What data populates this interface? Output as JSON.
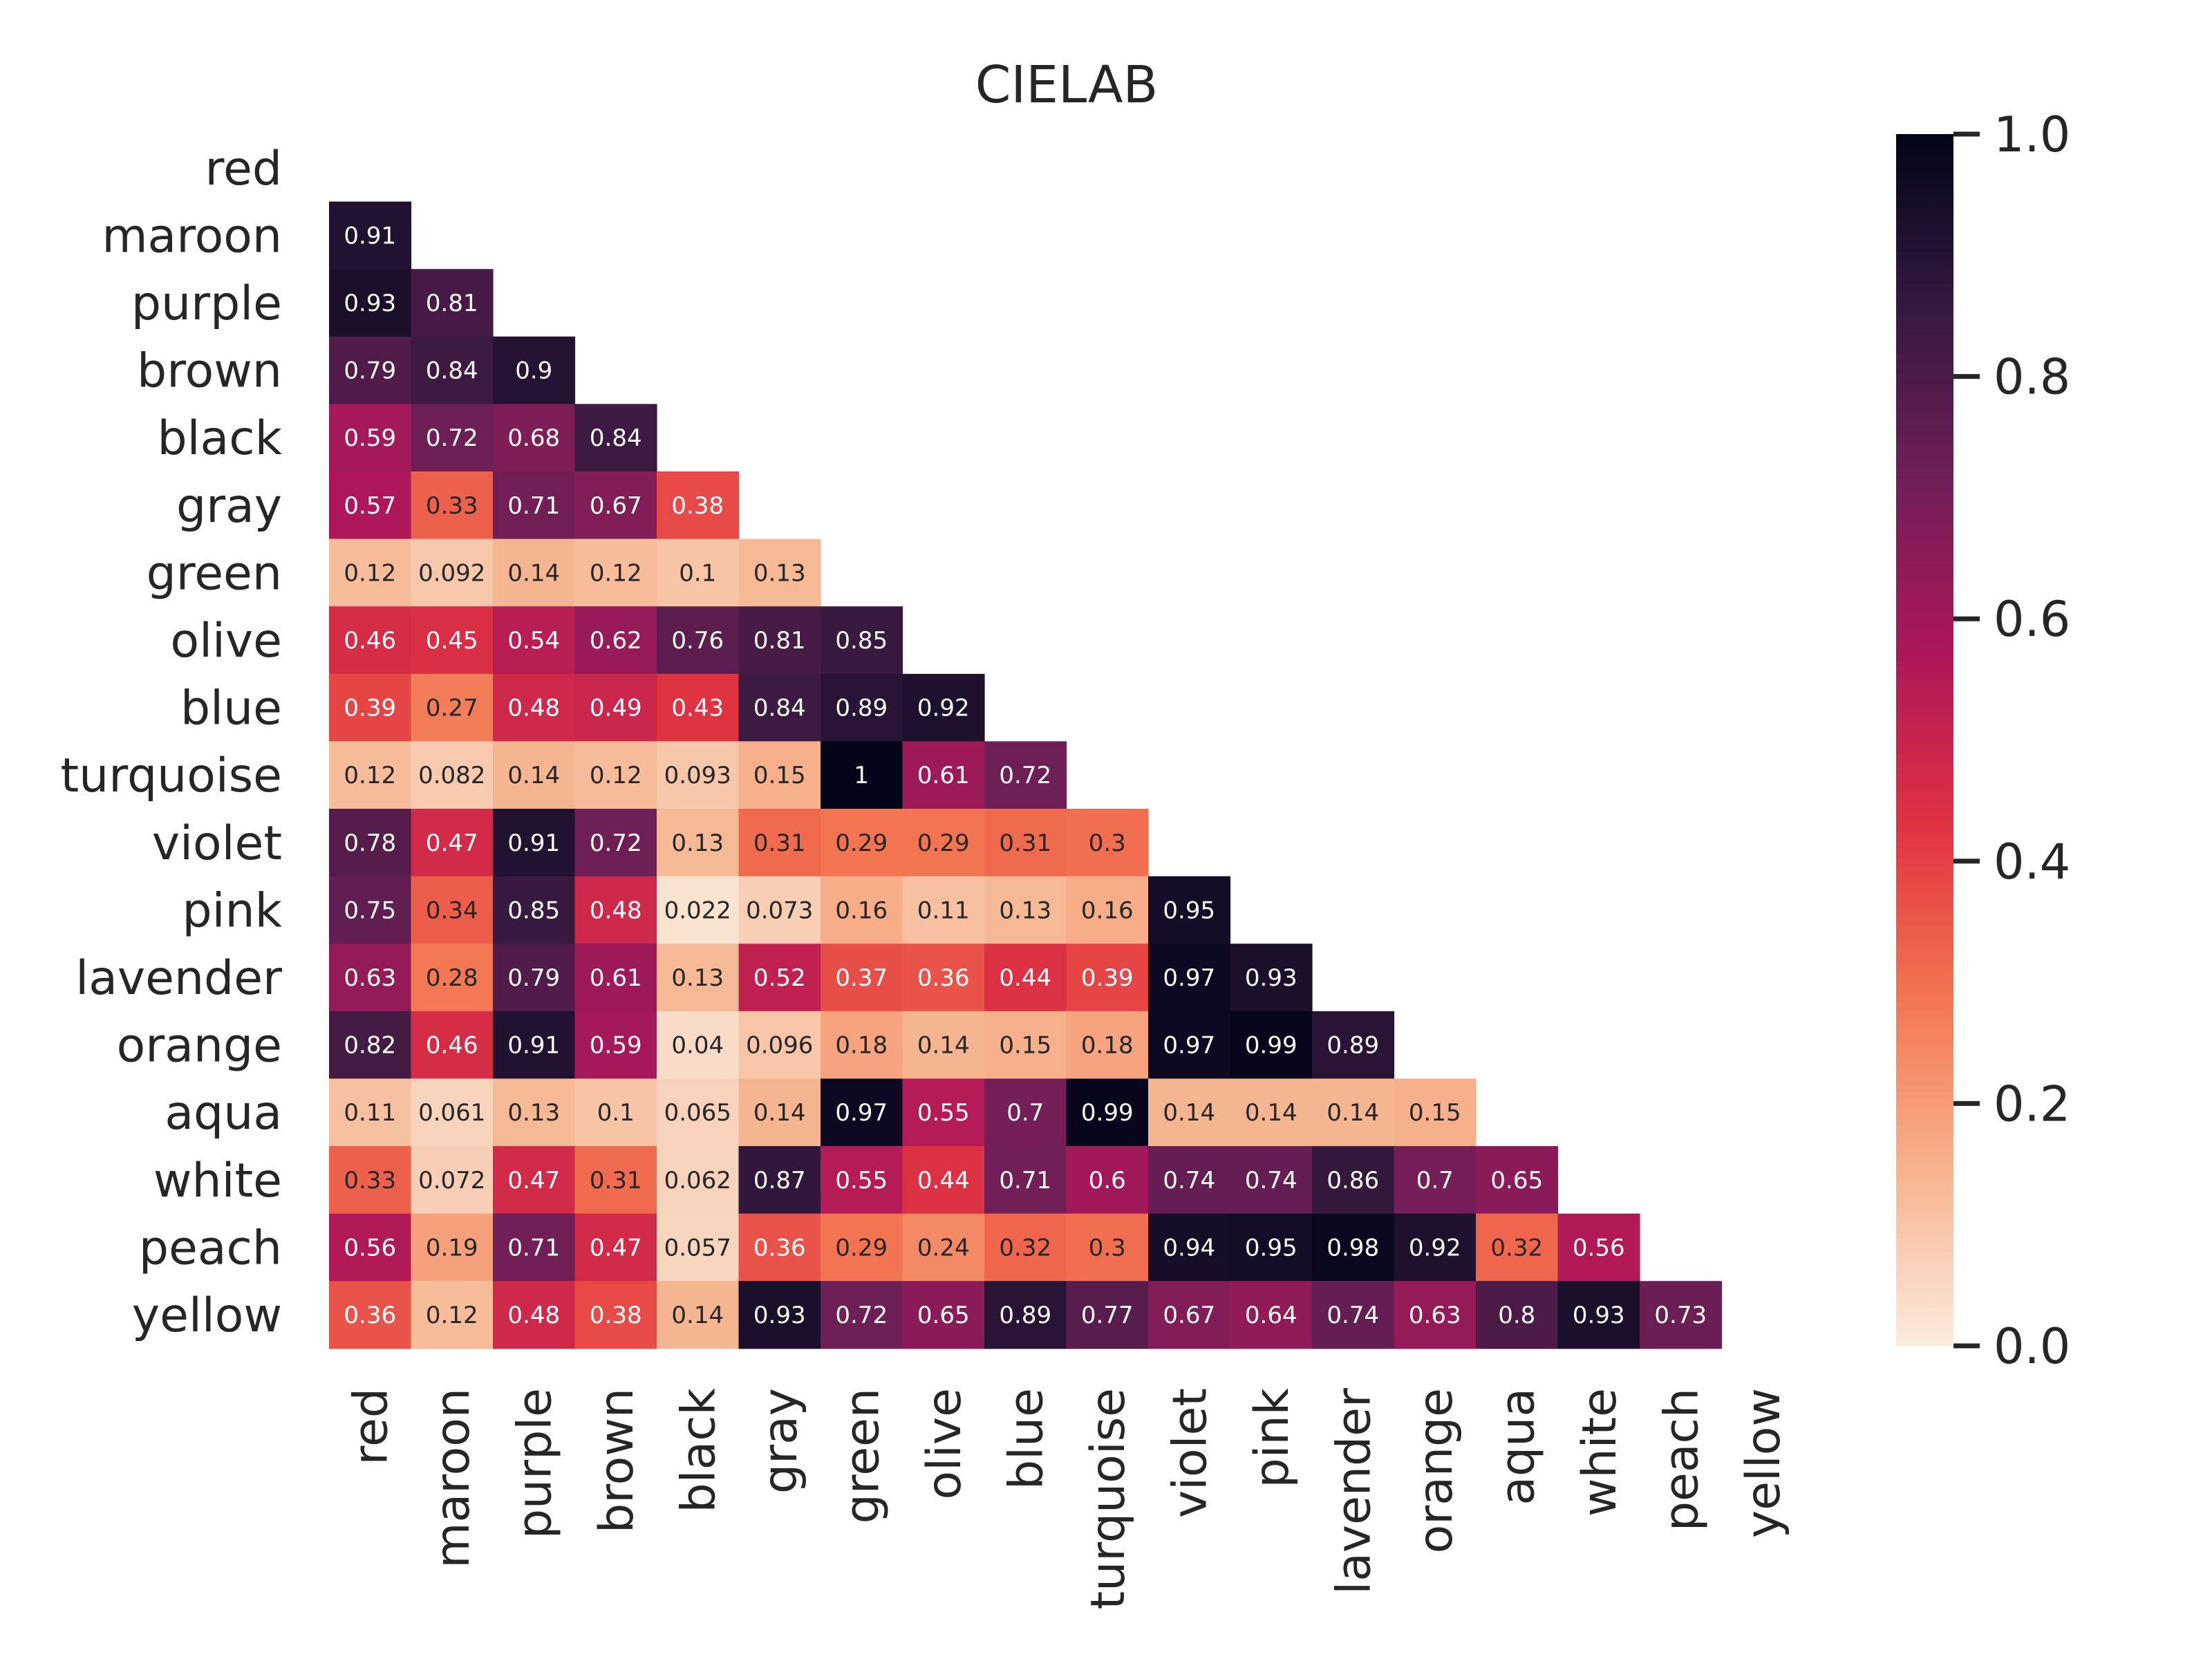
{
  "chart_data": {
    "type": "heatmap",
    "title": "CIELAB",
    "xlabel": "",
    "ylabel": "",
    "labels": [
      "red",
      "maroon",
      "purple",
      "brown",
      "black",
      "gray",
      "green",
      "olive",
      "blue",
      "turquoise",
      "violet",
      "pink",
      "lavender",
      "orange",
      "aqua",
      "white",
      "peach",
      "yellow"
    ],
    "mask": "upper-triangle-including-diagonal",
    "values": [
      [],
      [
        0.91
      ],
      [
        0.93,
        0.81
      ],
      [
        0.79,
        0.84,
        0.9
      ],
      [
        0.59,
        0.72,
        0.68,
        0.84
      ],
      [
        0.57,
        0.33,
        0.71,
        0.67,
        0.38
      ],
      [
        0.12,
        0.092,
        0.14,
        0.12,
        0.1,
        0.13
      ],
      [
        0.46,
        0.45,
        0.54,
        0.62,
        0.76,
        0.81,
        0.85
      ],
      [
        0.39,
        0.27,
        0.48,
        0.49,
        0.43,
        0.84,
        0.89,
        0.92
      ],
      [
        0.12,
        0.082,
        0.14,
        0.12,
        0.093,
        0.15,
        1,
        0.61,
        0.72
      ],
      [
        0.78,
        0.47,
        0.91,
        0.72,
        0.13,
        0.31,
        0.29,
        0.29,
        0.31,
        0.3
      ],
      [
        0.75,
        0.34,
        0.85,
        0.48,
        0.022,
        0.073,
        0.16,
        0.11,
        0.13,
        0.16,
        0.95
      ],
      [
        0.63,
        0.28,
        0.79,
        0.61,
        0.13,
        0.52,
        0.37,
        0.36,
        0.44,
        0.39,
        0.97,
        0.93
      ],
      [
        0.82,
        0.46,
        0.91,
        0.59,
        0.04,
        0.096,
        0.18,
        0.14,
        0.15,
        0.18,
        0.97,
        0.99,
        0.89
      ],
      [
        0.11,
        0.061,
        0.13,
        0.1,
        0.065,
        0.14,
        0.97,
        0.55,
        0.7,
        0.99,
        0.14,
        0.14,
        0.14,
        0.15
      ],
      [
        0.33,
        0.072,
        0.47,
        0.31,
        0.062,
        0.87,
        0.55,
        0.44,
        0.71,
        0.6,
        0.74,
        0.74,
        0.86,
        0.7,
        0.65
      ],
      [
        0.56,
        0.19,
        0.71,
        0.47,
        0.057,
        0.36,
        0.29,
        0.24,
        0.32,
        0.3,
        0.94,
        0.95,
        0.98,
        0.92,
        0.32,
        0.56
      ],
      [
        0.36,
        0.12,
        0.48,
        0.38,
        0.14,
        0.93,
        0.72,
        0.65,
        0.89,
        0.77,
        0.67,
        0.64,
        0.74,
        0.63,
        0.8,
        0.93,
        0.73
      ]
    ],
    "colorbar": {
      "range": [
        0.0,
        1.0
      ],
      "ticks": [
        0.0,
        0.2,
        0.4,
        0.6,
        0.8,
        1.0
      ],
      "tick_labels": [
        "0.0",
        "0.2",
        "0.4",
        "0.6",
        "0.8",
        "1.0"
      ],
      "colormap": "rocket_r",
      "colors": [
        "#faebdd",
        "#f6b48f",
        "#f37651",
        "#e13342",
        "#ad1759",
        "#701f57",
        "#35193e",
        "#03051a"
      ]
    }
  }
}
